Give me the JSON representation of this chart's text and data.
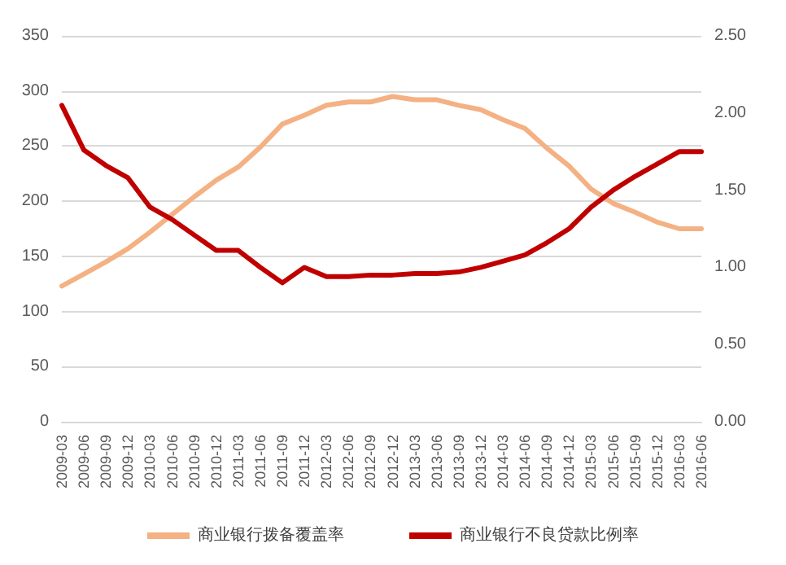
{
  "chart_data": {
    "type": "line",
    "categories": [
      "2009-03",
      "2009-06",
      "2009-09",
      "2009-12",
      "2010-03",
      "2010-06",
      "2010-09",
      "2010-12",
      "2011-03",
      "2011-06",
      "2011-09",
      "2011-12",
      "2012-03",
      "2012-06",
      "2012-09",
      "2012-12",
      "2013-03",
      "2013-06",
      "2013-09",
      "2013-12",
      "2014-03",
      "2014-06",
      "2014-09",
      "2014-12",
      "2015-03",
      "2015-06",
      "2015-09",
      "2015-12",
      "2016-03",
      "2016-06"
    ],
    "series": [
      {
        "name": "商业银行拨备覆盖率",
        "color": "#f4b183",
        "values": [
          123,
          134,
          145,
          157,
          172,
          188,
          204,
          219,
          231,
          249,
          270,
          278,
          287,
          290,
          290,
          295,
          292,
          292,
          287,
          283,
          274,
          266,
          248,
          232,
          211,
          198,
          190,
          181,
          175,
          175
        ]
      },
      {
        "name": "商业银行不良贷款比例率",
        "color": "#c00000",
        "axis": "y2",
        "values": [
          2.05,
          1.76,
          1.66,
          1.58,
          1.39,
          1.31,
          1.21,
          1.11,
          1.11,
          1.0,
          0.9,
          1.0,
          0.94,
          0.94,
          0.95,
          0.95,
          0.96,
          0.96,
          0.97,
          1.0,
          1.04,
          1.08,
          1.16,
          1.25,
          1.39,
          1.5,
          1.59,
          1.67,
          1.75,
          1.75
        ]
      }
    ],
    "ylim": [
      0,
      350
    ],
    "yticks": [
      0,
      50,
      100,
      150,
      200,
      250,
      300,
      350
    ],
    "y2lim": [
      0,
      2.5
    ],
    "y2ticks": [
      {
        "value": 0,
        "label": "0.00"
      },
      {
        "value": 0.5,
        "label": "0.50"
      },
      {
        "value": 1,
        "label": "1.00"
      },
      {
        "value": 1.5,
        "label": "1.50"
      },
      {
        "value": 2,
        "label": "2.00"
      },
      {
        "value": 2.5,
        "label": "2.50"
      }
    ],
    "grid": "y",
    "legend": "bottom",
    "marker": "none",
    "line_style": "solid"
  }
}
